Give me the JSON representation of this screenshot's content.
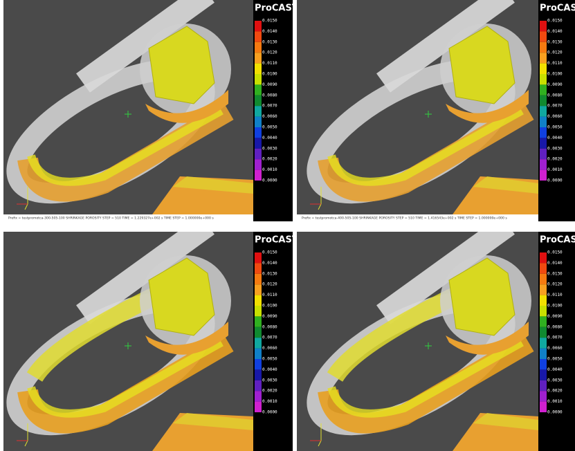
{
  "panels": [
    {
      "brand": "ProCAST",
      "legend": [
        "0.0150",
        "0.0140",
        "0.0130",
        "0.0120",
        "0.0110",
        "0.0100",
        "0.0090",
        "0.0080",
        "0.0070",
        "0.0060",
        "0.0050",
        "0.0040",
        "0.0030",
        "0.0020",
        "0.0010",
        "0.0000"
      ],
      "footer": "Prefix = testpromotca-300-505-100    SHRINKAGE POROSITY    STEP = 510    TIME = 1.229327e+002 s    TIME STEP = 1.000000e+000 s"
    },
    {
      "brand": "ProCAST",
      "legend": [
        "0.0150",
        "0.0140",
        "0.0130",
        "0.0120",
        "0.0110",
        "0.0100",
        "0.0090",
        "0.0080",
        "0.0070",
        "0.0060",
        "0.0050",
        "0.0040",
        "0.0030",
        "0.0020",
        "0.0010",
        "0.0000"
      ],
      "footer": "Prefix = testpromotca-400-505-100    SHRINKAGE POROSITY    STEP = 510    TIME = 1.416543e+002 s    TIME STEP = 1.000000e+000 s"
    },
    {
      "brand": "ProCAST",
      "legend": [
        "0.0150",
        "0.0140",
        "0.0130",
        "0.0120",
        "0.0110",
        "0.0100",
        "0.0090",
        "0.0080",
        "0.0070",
        "0.0060",
        "0.0050",
        "0.0040",
        "0.0030",
        "0.0020",
        "0.0010",
        "0.0000"
      ]
    },
    {
      "brand": "ProCAST",
      "legend": [
        "0.0150",
        "0.0140",
        "0.0130",
        "0.0120",
        "0.0110",
        "0.0100",
        "0.0090",
        "0.0080",
        "0.0070",
        "0.0060",
        "0.0050",
        "0.0040",
        "0.0030",
        "0.0020",
        "0.0010",
        "0.0000"
      ]
    }
  ]
}
